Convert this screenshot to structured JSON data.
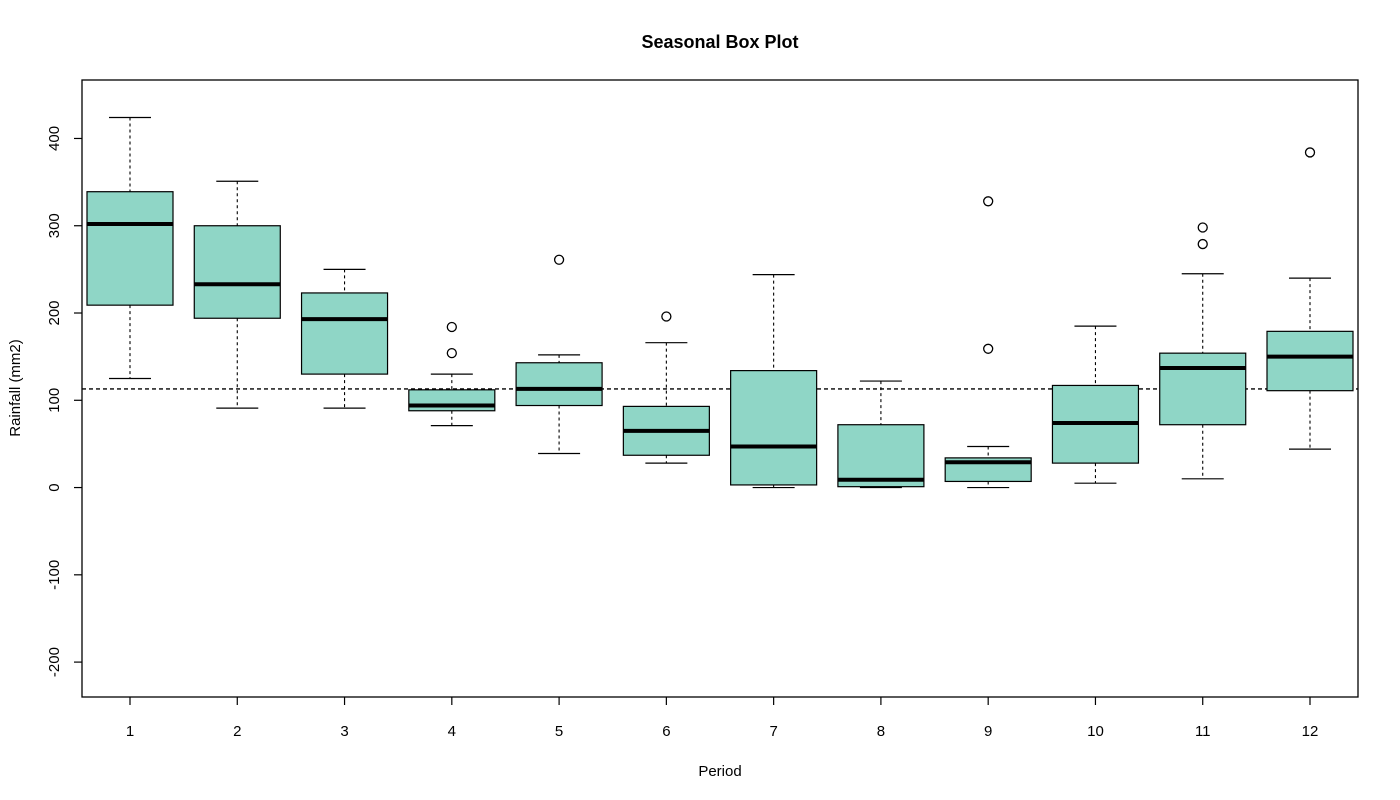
{
  "chart_data": {
    "type": "box",
    "title": "Seasonal Box Plot",
    "xlabel": "Period",
    "ylabel": "Rainfall (mm2)",
    "ylim": [
      -240,
      467
    ],
    "yticks": [
      -200,
      -100,
      0,
      100,
      200,
      300,
      400
    ],
    "categories": [
      "1",
      "2",
      "3",
      "4",
      "5",
      "6",
      "7",
      "8",
      "9",
      "10",
      "11",
      "12"
    ],
    "box_color": "#8fd6c6",
    "reference_line": 113,
    "boxes": [
      {
        "period": "1",
        "lower_whisker": 125,
        "q1": 209,
        "median": 302,
        "q3": 339,
        "upper_whisker": 424,
        "outliers": []
      },
      {
        "period": "2",
        "lower_whisker": 91,
        "q1": 194,
        "median": 233,
        "q3": 300,
        "upper_whisker": 351,
        "outliers": []
      },
      {
        "period": "3",
        "lower_whisker": 91,
        "q1": 130,
        "median": 193,
        "q3": 223,
        "upper_whisker": 250,
        "outliers": []
      },
      {
        "period": "4",
        "lower_whisker": 71,
        "q1": 88,
        "median": 94,
        "q3": 112,
        "upper_whisker": 130,
        "outliers": [
          154,
          184
        ]
      },
      {
        "period": "5",
        "lower_whisker": 39,
        "q1": 94,
        "median": 113,
        "q3": 143,
        "upper_whisker": 152,
        "outliers": [
          261
        ]
      },
      {
        "period": "6",
        "lower_whisker": 28,
        "q1": 37,
        "median": 65,
        "q3": 93,
        "upper_whisker": 166,
        "outliers": [
          196
        ]
      },
      {
        "period": "7",
        "lower_whisker": 0,
        "q1": 3,
        "median": 47,
        "q3": 134,
        "upper_whisker": 244,
        "outliers": []
      },
      {
        "period": "8",
        "lower_whisker": 0,
        "q1": 1,
        "median": 9,
        "q3": 72,
        "upper_whisker": 122,
        "outliers": []
      },
      {
        "period": "9",
        "lower_whisker": 0,
        "q1": 7,
        "median": 29,
        "q3": 34,
        "upper_whisker": 47,
        "outliers": [
          159,
          328
        ]
      },
      {
        "period": "10",
        "lower_whisker": 5,
        "q1": 28,
        "median": 74,
        "q3": 117,
        "upper_whisker": 185,
        "outliers": []
      },
      {
        "period": "11",
        "lower_whisker": 10,
        "q1": 72,
        "median": 137,
        "q3": 154,
        "upper_whisker": 245,
        "outliers": [
          279,
          298
        ]
      },
      {
        "period": "12",
        "lower_whisker": 44,
        "q1": 111,
        "median": 150,
        "q3": 179,
        "upper_whisker": 240,
        "outliers": [
          384
        ]
      }
    ]
  }
}
